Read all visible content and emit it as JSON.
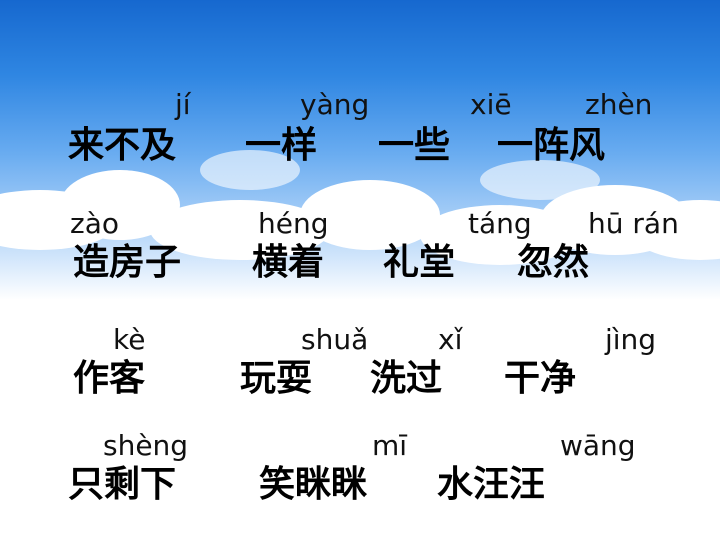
{
  "rows": [
    {
      "pinyin": [
        "jí",
        "yàng",
        "xiē",
        "zhèn"
      ],
      "words": [
        "来不及",
        "一样",
        "一些",
        "一阵风"
      ]
    },
    {
      "pinyin": [
        "zào",
        "héng",
        "táng",
        "hū rán"
      ],
      "words": [
        "造房子",
        "横着",
        "礼堂",
        "忽然"
      ]
    },
    {
      "pinyin": [
        "kè",
        "shuǎ",
        "xǐ",
        "jìng"
      ],
      "words": [
        "作客",
        "玩耍",
        "洗过",
        "干净"
      ]
    },
    {
      "pinyin": [
        "shèng",
        "mī",
        "wāng"
      ],
      "words": [
        "只剩下",
        "笑眯眯",
        "水汪汪"
      ]
    }
  ]
}
